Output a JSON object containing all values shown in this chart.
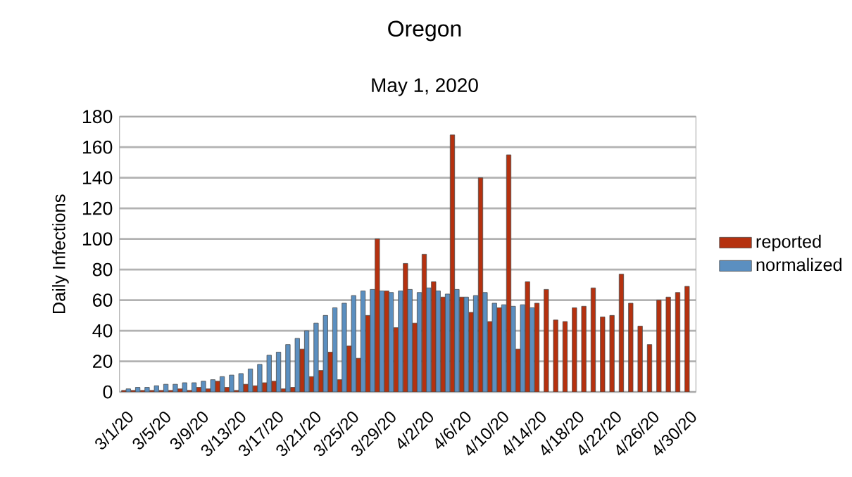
{
  "chart_data": {
    "type": "bar",
    "title": "Oregon",
    "subtitle": "May 1, 2020",
    "ylabel": "Daily Infections",
    "categories": [
      "3/1/20",
      null,
      null,
      null,
      "3/5/20",
      null,
      null,
      null,
      "3/9/20",
      null,
      null,
      null,
      "3/13/20",
      null,
      null,
      null,
      "3/17/20",
      null,
      null,
      null,
      "3/21/20",
      null,
      null,
      null,
      "3/25/20",
      null,
      null,
      null,
      "3/29/20",
      null,
      null,
      null,
      "4/2/20",
      null,
      null,
      null,
      "4/6/20",
      null,
      null,
      null,
      "4/10/20",
      null,
      null,
      null,
      "4/14/20",
      null,
      null,
      null,
      "4/18/20",
      null,
      null,
      null,
      "4/22/20",
      null,
      null,
      null,
      "4/26/20",
      null,
      null,
      null,
      "4/30/20"
    ],
    "series": [
      {
        "name": "reported",
        "color": "#b5310f",
        "values": [
          1,
          1,
          1,
          1,
          1,
          1,
          2,
          1,
          3,
          2,
          7,
          3,
          1,
          5,
          4,
          6,
          7,
          2,
          3,
          28,
          10,
          14,
          26,
          8,
          30,
          22,
          50,
          100,
          66,
          42,
          84,
          45,
          90,
          72,
          62,
          168,
          62,
          52,
          140,
          46,
          55,
          155,
          28,
          72,
          58,
          67,
          47,
          46,
          55,
          56,
          68,
          49,
          50,
          77,
          58,
          43,
          31,
          60,
          62,
          65,
          69
        ]
      },
      {
        "name": "normalized",
        "color": "#5b8fc0",
        "values": [
          2,
          3,
          3,
          4,
          5,
          5,
          6,
          6,
          7,
          8,
          10,
          11,
          12,
          15,
          18,
          24,
          26,
          31,
          35,
          40,
          45,
          50,
          55,
          58,
          63,
          66,
          67,
          66,
          65,
          66,
          67,
          65,
          68,
          66,
          64,
          67,
          62,
          63,
          65,
          58,
          57,
          56,
          57,
          55,
          null,
          null,
          null,
          null,
          null,
          null,
          null,
          null,
          null,
          null,
          null,
          null,
          null,
          null,
          null,
          null,
          null
        ]
      }
    ],
    "ylim": [
      0,
      180
    ],
    "yticks": [
      0,
      20,
      40,
      60,
      80,
      100,
      120,
      140,
      160,
      180
    ],
    "grid": "y",
    "legend": "right"
  }
}
